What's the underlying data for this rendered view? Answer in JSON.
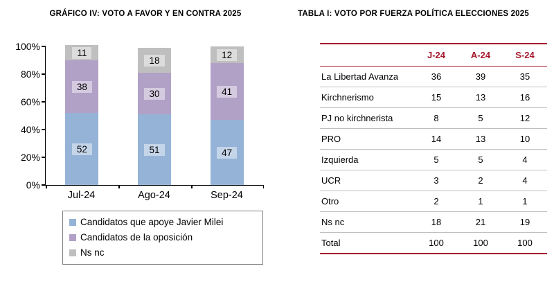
{
  "chart_data": [
    {
      "type": "bar",
      "stacked": true,
      "title": "GRÁFICO IV: VOTO A FAVOR Y EN CONTRA 2025",
      "categories": [
        "Jul-24",
        "Ago-24",
        "Sep-24"
      ],
      "series": [
        {
          "name": "Candidatos que apoye Javier Milei",
          "color": "#95B3D7",
          "values": [
            52,
            51,
            47
          ]
        },
        {
          "name": "Candidatos de la oposición",
          "color": "#B2A1C7",
          "values": [
            38,
            30,
            41
          ]
        },
        {
          "name": "Ns nc",
          "color": "#BFBFBF",
          "values": [
            11,
            18,
            12
          ]
        }
      ],
      "y_ticks": [
        "0%",
        "20%",
        "40%",
        "60%",
        "80%",
        "100%"
      ],
      "ylim": [
        0,
        100
      ],
      "xlabel": "",
      "ylabel": "",
      "grid": false,
      "legend_position": "bottom"
    },
    {
      "type": "table",
      "title": "TABLA I: VOTO POR FUERZA POLÍTICA ELECCIONES 2025",
      "columns": [
        "J-24",
        "A-24",
        "S-24"
      ],
      "rows": [
        {
          "label": "La Libertad Avanza",
          "values": [
            36,
            39,
            35
          ]
        },
        {
          "label": "Kirchnerismo",
          "values": [
            15,
            13,
            16
          ]
        },
        {
          "label": "PJ no kirchnerista",
          "values": [
            8,
            5,
            12
          ]
        },
        {
          "label": "PRO",
          "values": [
            14,
            13,
            10
          ]
        },
        {
          "label": "Izquierda",
          "values": [
            5,
            5,
            4
          ]
        },
        {
          "label": "UCR",
          "values": [
            3,
            2,
            4
          ]
        },
        {
          "label": "Otro",
          "values": [
            2,
            1,
            1
          ]
        },
        {
          "label": "Ns nc",
          "values": [
            18,
            21,
            19
          ]
        },
        {
          "label": "Total",
          "values": [
            100,
            100,
            100
          ]
        }
      ],
      "accent_color": "#A6192E",
      "row_divider_color": "#BFBFBF"
    }
  ]
}
